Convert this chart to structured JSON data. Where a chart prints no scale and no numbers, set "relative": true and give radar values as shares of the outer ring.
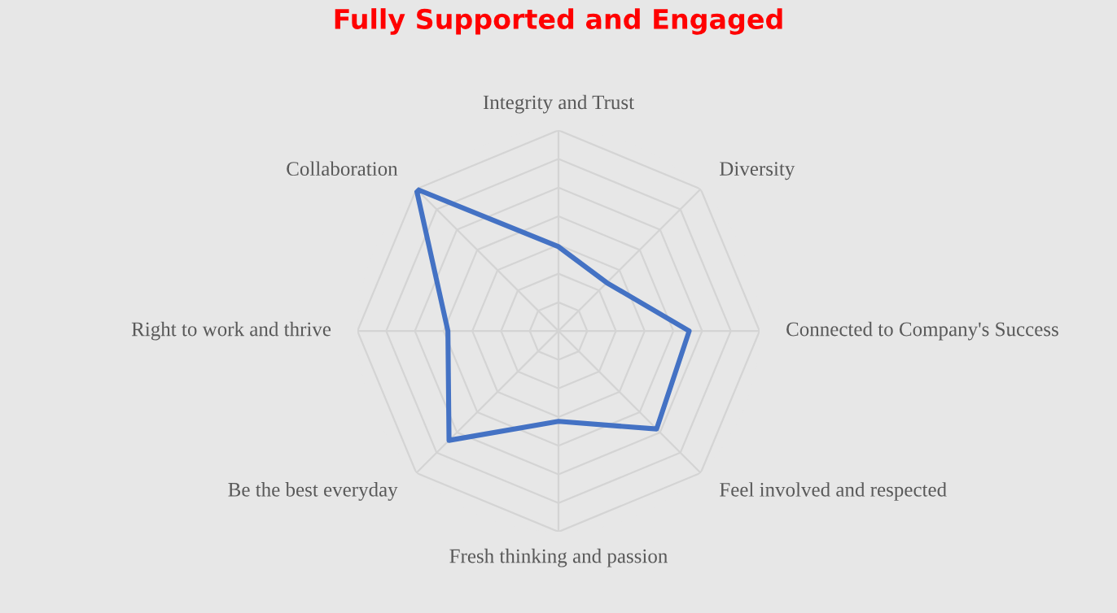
{
  "chart_data": {
    "type": "radar",
    "title": "Fully Supported and Engaged",
    "categories": [
      "Integrity and Trust",
      "Diversity",
      "Connected to Company's Success",
      "Feel involved and respected",
      "Fresh thinking and passion",
      "Be the best everyday",
      "Right to work and thrive",
      "Collaboration"
    ],
    "relative": true,
    "grid": true,
    "series": [
      {
        "color": "#4472c4",
        "values": [
          0.42,
          0.34,
          0.65,
          0.69,
          0.45,
          0.77,
          0.55,
          1.0
        ]
      }
    ]
  }
}
